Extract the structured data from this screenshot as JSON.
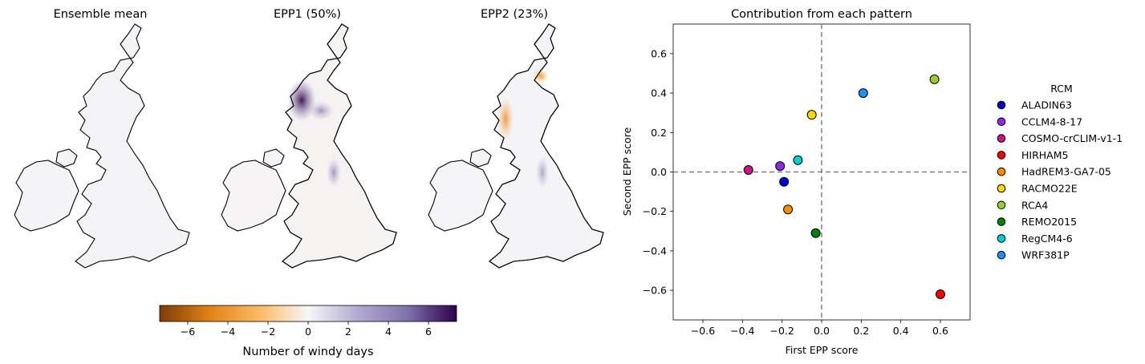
{
  "maps": {
    "panels": [
      {
        "title": "Ensemble mean",
        "accent": "none"
      },
      {
        "title": "EPP1 (50%)",
        "accent": "purple"
      },
      {
        "title": "EPP2 (23%)",
        "accent": "mixed"
      }
    ],
    "colorbar": {
      "label": "Number of windy days",
      "ticks": [
        "−6",
        "−4",
        "−2",
        "0",
        "2",
        "4",
        "6"
      ],
      "tick_values": [
        -6,
        -4,
        -2,
        0,
        2,
        4,
        6
      ],
      "range": [
        -7.4,
        7.4
      ],
      "colormap": "PuOr",
      "colors": [
        "#7f3b08",
        "#e08214",
        "#fdb863",
        "#f7f7f7",
        "#b2abd2",
        "#8073ac",
        "#2d004b"
      ]
    }
  },
  "chart_data": {
    "type": "scatter",
    "title": "Contribution from each pattern",
    "xlabel": "First EPP score",
    "ylabel": "Second EPP score",
    "xlim": [
      -0.75,
      0.75
    ],
    "ylim": [
      -0.75,
      0.75
    ],
    "xticks": [
      -0.6,
      -0.4,
      -0.2,
      0.0,
      0.2,
      0.4,
      0.6
    ],
    "yticks": [
      -0.6,
      -0.4,
      -0.2,
      0.0,
      0.2,
      0.4,
      0.6
    ],
    "xtick_labels": [
      "−0.6",
      "−0.4",
      "−0.2",
      "0.0",
      "0.2",
      "0.4",
      "0.6"
    ],
    "ytick_labels": [
      "−0.6",
      "−0.4",
      "−0.2",
      "0.0",
      "0.2",
      "0.4",
      "0.6"
    ],
    "reference_lines": {
      "x": 0,
      "y": 0,
      "style": "dashed",
      "color": "#808080"
    },
    "grid": false,
    "legend": {
      "title": "RCM",
      "placement": "outside-right"
    },
    "series": [
      {
        "name": "ALADIN63",
        "color": "#0000cd",
        "x": -0.19,
        "y": -0.05
      },
      {
        "name": "CCLM4-8-17",
        "color": "#8a2be2",
        "x": -0.21,
        "y": 0.03
      },
      {
        "name": "COSMO-crCLIM-v1-1",
        "color": "#c71585",
        "x": -0.37,
        "y": 0.01
      },
      {
        "name": "HIRHAM5",
        "color": "#ff0000",
        "x": 0.6,
        "y": -0.62
      },
      {
        "name": "HadREM3-GA7-05",
        "color": "#ff8c00",
        "x": -0.17,
        "y": -0.19
      },
      {
        "name": "RACMO22E",
        "color": "#ffd700",
        "x": -0.05,
        "y": 0.29
      },
      {
        "name": "RCA4",
        "color": "#9acd32",
        "x": 0.57,
        "y": 0.47
      },
      {
        "name": "REMO2015",
        "color": "#008000",
        "x": -0.03,
        "y": -0.31
      },
      {
        "name": "RegCM4-6",
        "color": "#00ced1",
        "x": -0.12,
        "y": 0.06
      },
      {
        "name": "WRF381P",
        "color": "#1e90ff",
        "x": 0.21,
        "y": 0.4
      }
    ]
  }
}
